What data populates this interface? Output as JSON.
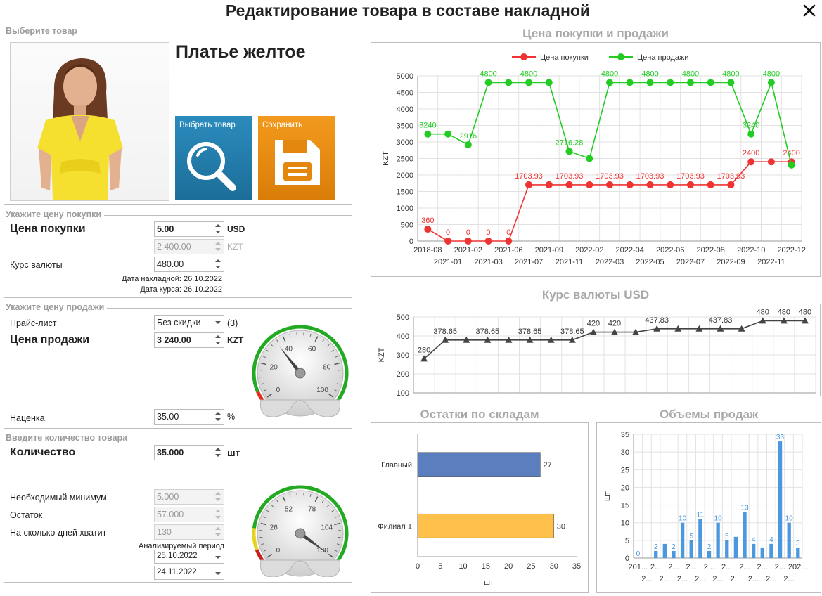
{
  "window": {
    "title": "Редактирование товара в составе накладной"
  },
  "product": {
    "legend": "Выберите товар",
    "name": "Платье желтое",
    "select_button": "Выбрать товар",
    "save_button": "Сохранить"
  },
  "purchase": {
    "legend": "Укажите цену покупки",
    "price_label": "Цена покупки",
    "price_value": "5.00",
    "currency": "USD",
    "price_kzt_value": "2 400.00",
    "kzt_unit": "KZT",
    "rate_label": "Курс валюты",
    "rate_value": "480.00",
    "invoice_date": "Дата накладной: 26.10.2022",
    "rate_date": "Дата курса: 26.10.2022"
  },
  "sale": {
    "legend": "Укажите цену продажи",
    "pricelist_label": "Прайс-лист",
    "pricelist_value": "Без скидки",
    "pricelist_count": "(3)",
    "price_label": "Цена продажи",
    "price_value": "3 240.00",
    "currency": "KZT",
    "markup_label": "Наценка",
    "markup_value": "35.00",
    "markup_unit": "%",
    "gauge": {
      "ticks": [
        "0",
        "20",
        "40",
        "60",
        "80",
        "100"
      ],
      "value": 35,
      "min": 0,
      "max": 100
    }
  },
  "quantity": {
    "legend": "Введите количество товара",
    "qty_label": "Количество",
    "qty_value": "35.000",
    "qty_unit": "шт",
    "min_label": "Необходимый минимум",
    "min_value": "5.000",
    "rest_label": "Остаток",
    "rest_value": "57.000",
    "days_label": "На сколько дней хватит",
    "days_value": "130",
    "period_label": "Анализируемый период",
    "date_from": "25.10.2022",
    "date_to": "24.11.2022",
    "gauge": {
      "ticks": [
        "0",
        "26",
        "52",
        "78",
        "104",
        "130"
      ],
      "value": 130,
      "min": 0,
      "max": 130
    }
  },
  "chart_data": [
    {
      "type": "line",
      "title": "Цена покупки и продажи",
      "ylabel": "KZT",
      "ylim": [
        0,
        5000
      ],
      "yticks": [
        "0",
        "500",
        "1000",
        "1500",
        "2000",
        "2500",
        "3000",
        "3500",
        "4000",
        "4500",
        "5000"
      ],
      "x_top": [
        "2018-08",
        "2021-02",
        "2021-06",
        "2021-09",
        "2022-02",
        "2022-04",
        "2022-06",
        "2022-08",
        "2022-10",
        "2022-12"
      ],
      "x_bottom": [
        "2021-01",
        "2021-03",
        "2021-07",
        "2021-11",
        "2022-03",
        "2022-05",
        "2022-07",
        "2022-09",
        "2022-11"
      ],
      "legend_position": "top",
      "series": [
        {
          "name": "Цена покупки",
          "color": "#ee3333",
          "values": [
            360,
            0,
            0,
            0,
            0,
            1703.93,
            1703.93,
            1703.93,
            1703.93,
            1703.93,
            1703.93,
            1703.93,
            1703.93,
            1703.93,
            1703.93,
            1703.93,
            2400,
            2400,
            2400
          ],
          "labels": [
            "360",
            "0",
            "0",
            "0",
            "0",
            "1703.93",
            "",
            "1703.93",
            "",
            "1703.93",
            "",
            "1703.93",
            "",
            "1703.93",
            "",
            "1703.93",
            "2400",
            "",
            "2400"
          ]
        },
        {
          "name": "Цена продажи",
          "color": "#22cc22",
          "values": [
            3240,
            3240,
            2916,
            4800,
            4800,
            4800,
            4800,
            2716.28,
            2500,
            4800,
            4800,
            4800,
            4800,
            4800,
            4800,
            4800,
            3240,
            4800,
            2300
          ],
          "labels": [
            "3240",
            "",
            "2916",
            "4800",
            "",
            "4800",
            "",
            "2716.28",
            "",
            "4800",
            "",
            "4800",
            "",
            "4800",
            "",
            "4800",
            "3240",
            "4800",
            ""
          ]
        }
      ]
    },
    {
      "type": "line",
      "title": "Курс валюты USD",
      "ylabel": "KZT",
      "ylim": [
        100,
        500
      ],
      "yticks": [
        "100",
        "200",
        "300",
        "400",
        "500"
      ],
      "series": [
        {
          "name": "",
          "color": "#444444",
          "values": [
            280,
            378.65,
            378.65,
            378.65,
            378.65,
            378.65,
            378.65,
            378.65,
            420,
            420,
            420,
            437.83,
            437.83,
            437.83,
            437.83,
            437.83,
            480,
            480,
            480
          ],
          "labels": [
            "280",
            "378.65",
            "",
            "378.65",
            "",
            "378.65",
            "",
            "378.65",
            "420",
            "420",
            "",
            "437.83",
            "",
            "",
            "437.83",
            "",
            "480",
            "480",
            "480"
          ]
        }
      ]
    },
    {
      "type": "bar",
      "orientation": "horizontal",
      "title": "Остатки по складам",
      "xlabel": "шт",
      "xlim": [
        0,
        35
      ],
      "xticks": [
        "0",
        "5",
        "10",
        "15",
        "20",
        "25",
        "30",
        "35"
      ],
      "categories": [
        "Главный",
        "Филиал 1"
      ],
      "values": [
        27,
        30
      ],
      "labels": [
        "27",
        "30"
      ],
      "colors": [
        "#5b7fbe",
        "#ffc04c"
      ]
    },
    {
      "type": "bar",
      "title": "Объемы продаж",
      "ylabel": "шт",
      "ylim": [
        0,
        35
      ],
      "yticks": [
        "0",
        "5",
        "10",
        "15",
        "20",
        "25",
        "30",
        "35"
      ],
      "values": [
        0,
        0,
        2,
        4,
        2,
        10,
        5,
        11,
        2,
        10,
        5,
        6,
        13,
        4,
        3,
        4,
        33,
        10,
        3
      ],
      "labels": [
        "0",
        "",
        "2",
        "",
        "2",
        "10",
        "5",
        "11",
        "2",
        "10",
        "5",
        "",
        "13",
        "4",
        "",
        "4",
        "33",
        "10",
        "3"
      ],
      "x_top": [
        "201...",
        "2...",
        "2...",
        "2...",
        "2...",
        "2...",
        "2...",
        "2...",
        "2...",
        "202..."
      ],
      "x_bottom": [
        "2...",
        "2...",
        "2...",
        "2...",
        "2...",
        "2...",
        "2...",
        "2...",
        "2..."
      ],
      "color": "#4a98e0"
    }
  ]
}
